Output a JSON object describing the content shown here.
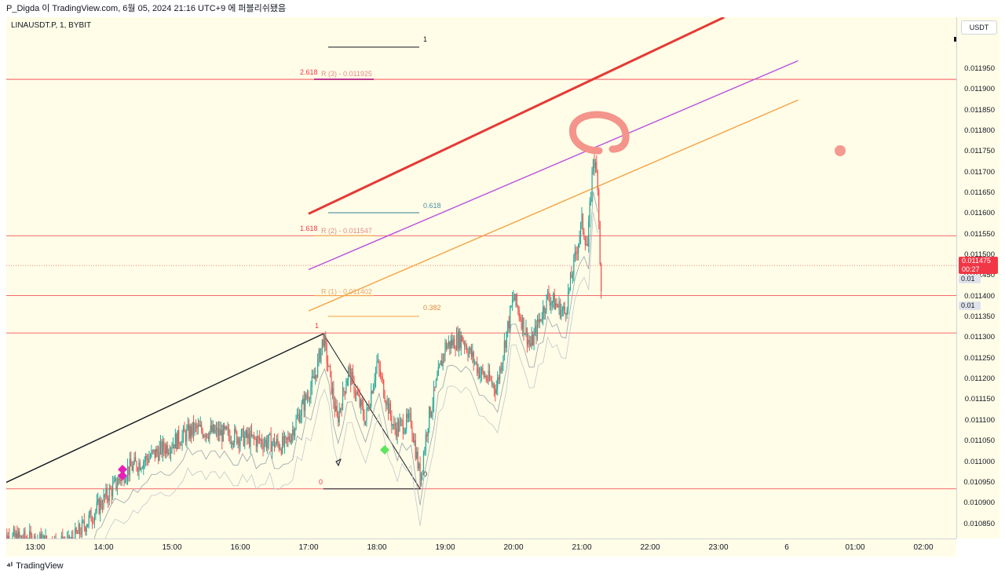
{
  "header": {
    "title": "P_Digda 이 TradingView.com, 6월 05, 2024 21:16 UTC+9 에 퍼블리쉬됐음"
  },
  "symbol_label": "LINAUSDT.P, 1, BYBIT",
  "currency_button": "USDT",
  "current_price": {
    "value": "0.011475",
    "countdown": "00:27",
    "color": "#f23645"
  },
  "indicator_tags": [
    "0.01",
    "0.01"
  ],
  "footer": {
    "brand": "TradingView"
  },
  "colors": {
    "background": "#fffde7",
    "up": "#26a69a",
    "down": "#ef5350",
    "fib": "#f23645"
  },
  "chart_data": {
    "type": "candlestick",
    "ylim": [
      0.010815,
      0.012075
    ],
    "yticks": [
      "0.011950",
      "0.011900",
      "0.011850",
      "0.011800",
      "0.011750",
      "0.011700",
      "0.011650",
      "0.011600",
      "0.011550",
      "0.011500",
      "0.011450",
      "0.011400",
      "0.011350",
      "0.011300",
      "0.011250",
      "0.011200",
      "0.011150",
      "0.011100",
      "0.011050",
      "0.011000",
      "0.010950",
      "0.010900",
      "0.010850"
    ],
    "xticks": [
      "13:00",
      "14:00",
      "15:00",
      "16:00",
      "17:00",
      "18:00",
      "19:00",
      "20:00",
      "21:00",
      "22:00",
      "23:00",
      "6",
      "01:00",
      "02:00"
    ],
    "price_path": [
      [
        "12:30",
        0.01082
      ],
      [
        "13:30",
        0.0108
      ],
      [
        "14:20",
        0.01098
      ],
      [
        "14:45",
        0.01102
      ],
      [
        "15:20",
        0.01108
      ],
      [
        "16:00",
        0.01106
      ],
      [
        "16:40",
        0.01104
      ],
      [
        "17:05",
        0.0112
      ],
      [
        "17:13",
        0.0113
      ],
      [
        "17:25",
        0.0111
      ],
      [
        "17:35",
        0.01122
      ],
      [
        "17:50",
        0.0111
      ],
      [
        "18:00",
        0.01124
      ],
      [
        "18:15",
        0.01108
      ],
      [
        "18:30",
        0.0111
      ],
      [
        "18:38",
        0.01096
      ],
      [
        "18:45",
        0.0111
      ],
      [
        "19:00",
        0.01128
      ],
      [
        "19:15",
        0.0113
      ],
      [
        "19:30",
        0.01122
      ],
      [
        "19:45",
        0.01118
      ],
      [
        "20:00",
        0.0114
      ],
      [
        "20:15",
        0.01128
      ],
      [
        "20:30",
        0.0114
      ],
      [
        "20:45",
        0.01136
      ],
      [
        "21:00",
        0.01158
      ],
      [
        "21:05",
        0.01152
      ],
      [
        "21:10",
        0.01174
      ],
      [
        "21:14",
        0.01168
      ],
      [
        "21:17",
        0.0114
      ]
    ],
    "fib_levels": [
      {
        "ratio": "2.618",
        "label": "R (3) - 0.011925",
        "price": 0.011925
      },
      {
        "ratio": "1.618",
        "label": "R (2) - 0.011547",
        "price": 0.011547
      },
      {
        "ratio": "",
        "label": "R (1) - 0.011402",
        "price": 0.011402
      },
      {
        "ratio": "1",
        "label": "",
        "price": 0.011312
      },
      {
        "ratio": "0",
        "label": "",
        "price": 0.010935
      }
    ],
    "fib_projection_labels": [
      "1",
      "0.618",
      "0.382",
      "0"
    ],
    "trendlines": [
      {
        "color": "#e53935",
        "from": [
          "17:00",
          0.0116
        ],
        "to": [
          "23:05",
          0.012075
        ]
      },
      {
        "color": "#b84fe0",
        "from": [
          "17:00",
          0.011465
        ],
        "to": [
          "00:10",
          0.01197
        ]
      },
      {
        "color": "#f5a142",
        "from": [
          "17:00",
          0.011365
        ],
        "to": [
          "00:10",
          0.011875
        ]
      },
      {
        "color": "#131722",
        "from": [
          "12:30",
          0.010945
        ],
        "to": [
          "17:13",
          0.01131
        ]
      }
    ]
  }
}
